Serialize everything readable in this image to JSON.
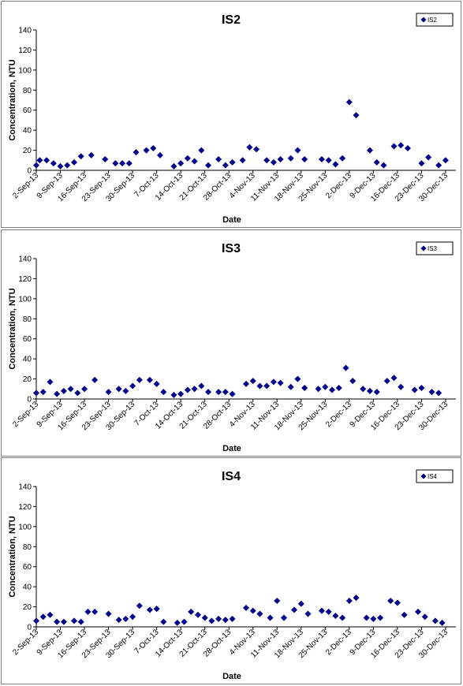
{
  "colors": {
    "marker": "#00008B",
    "axis": "#000000",
    "border": "#7f7f7f"
  },
  "chart_data": [
    {
      "type": "scatter",
      "title": "IS2",
      "xlabel": "Date",
      "ylabel": "Concentration, NTU",
      "ylim": [
        0,
        140
      ],
      "yticks": [
        0,
        20,
        40,
        60,
        80,
        100,
        120,
        140
      ],
      "xlim": [
        "2-Sep-13",
        "2-Jan-14"
      ],
      "xticks": [
        "2-Sep-13",
        "9-Sep-13",
        "16-Sep-13",
        "23-Sep-13",
        "30-Sep-13",
        "7-Oct-13",
        "14-Oct-13",
        "21-Oct-13",
        "28-Oct-13",
        "4-Nov-13",
        "11-Nov-13",
        "18-Nov-13",
        "25-Nov-13",
        "2-Dec-13",
        "9-Dec-13",
        "16-Dec-13",
        "23-Dec-13",
        "30-Dec-13"
      ],
      "legend": "top-right",
      "grid": false,
      "series": [
        {
          "name": "IS2",
          "points": [
            [
              "2-Sep-13",
              5
            ],
            [
              "3-Sep-13",
              10
            ],
            [
              "5-Sep-13",
              10
            ],
            [
              "7-Sep-13",
              7
            ],
            [
              "9-Sep-13",
              4
            ],
            [
              "11-Sep-13",
              5
            ],
            [
              "13-Sep-13",
              8
            ],
            [
              "15-Sep-13",
              14
            ],
            [
              "18-Sep-13",
              15
            ],
            [
              "22-Sep-13",
              11
            ],
            [
              "25-Sep-13",
              7
            ],
            [
              "27-Sep-13",
              7
            ],
            [
              "29-Sep-13",
              7
            ],
            [
              "1-Oct-13",
              18
            ],
            [
              "4-Oct-13",
              20
            ],
            [
              "6-Oct-13",
              22
            ],
            [
              "8-Oct-13",
              15
            ],
            [
              "12-Oct-13",
              4
            ],
            [
              "14-Oct-13",
              7
            ],
            [
              "16-Oct-13",
              12
            ],
            [
              "18-Oct-13",
              9
            ],
            [
              "20-Oct-13",
              20
            ],
            [
              "22-Oct-13",
              5
            ],
            [
              "25-Oct-13",
              11
            ],
            [
              "27-Oct-13",
              5
            ],
            [
              "29-Oct-13",
              8
            ],
            [
              "1-Nov-13",
              10
            ],
            [
              "3-Nov-13",
              23
            ],
            [
              "5-Nov-13",
              21
            ],
            [
              "8-Nov-13",
              10
            ],
            [
              "10-Nov-13",
              8
            ],
            [
              "12-Nov-13",
              11
            ],
            [
              "15-Nov-13",
              12
            ],
            [
              "17-Nov-13",
              20
            ],
            [
              "19-Nov-13",
              11
            ],
            [
              "24-Nov-13",
              11
            ],
            [
              "26-Nov-13",
              10
            ],
            [
              "28-Nov-13",
              6
            ],
            [
              "30-Nov-13",
              12
            ],
            [
              "2-Dec-13",
              68
            ],
            [
              "4-Dec-13",
              55
            ],
            [
              "8-Dec-13",
              20
            ],
            [
              "10-Dec-13",
              8
            ],
            [
              "12-Dec-13",
              5
            ],
            [
              "15-Dec-13",
              24
            ],
            [
              "17-Dec-13",
              25
            ],
            [
              "19-Dec-13",
              22
            ],
            [
              "23-Dec-13",
              7
            ],
            [
              "25-Dec-13",
              13
            ],
            [
              "28-Dec-13",
              5
            ],
            [
              "30-Dec-13",
              10
            ]
          ]
        }
      ]
    },
    {
      "type": "scatter",
      "title": "IS3",
      "xlabel": "Date",
      "ylabel": "Concentration, NTU",
      "ylim": [
        0,
        140
      ],
      "yticks": [
        0,
        20,
        40,
        60,
        80,
        100,
        120,
        140
      ],
      "xlim": [
        "2-Sep-13",
        "2-Jan-14"
      ],
      "xticks": [
        "2-Sep-13",
        "9-Sep-13",
        "16-Sep-13",
        "23-Sep-13",
        "30-Sep-13",
        "7-Oct-13",
        "14-Oct-13",
        "21-Oct-13",
        "28-Oct-13",
        "4-Nov-13",
        "11-Nov-13",
        "18-Nov-13",
        "25-Nov-13",
        "2-Dec-13",
        "9-Dec-13",
        "16-Dec-13",
        "23-Dec-13",
        "30-Dec-13"
      ],
      "legend": "top-right",
      "grid": false,
      "series": [
        {
          "name": "IS3",
          "points": [
            [
              "2-Sep-13",
              6
            ],
            [
              "4-Sep-13",
              7
            ],
            [
              "6-Sep-13",
              17
            ],
            [
              "8-Sep-13",
              5
            ],
            [
              "10-Sep-13",
              8
            ],
            [
              "12-Sep-13",
              10
            ],
            [
              "14-Sep-13",
              6
            ],
            [
              "16-Sep-13",
              10
            ],
            [
              "19-Sep-13",
              19
            ],
            [
              "23-Sep-13",
              7
            ],
            [
              "26-Sep-13",
              10
            ],
            [
              "28-Sep-13",
              8
            ],
            [
              "30-Sep-13",
              13
            ],
            [
              "2-Oct-13",
              19
            ],
            [
              "5-Oct-13",
              19
            ],
            [
              "7-Oct-13",
              15
            ],
            [
              "9-Oct-13",
              7
            ],
            [
              "12-Oct-13",
              4
            ],
            [
              "14-Oct-13",
              5
            ],
            [
              "16-Oct-13",
              9
            ],
            [
              "18-Oct-13",
              10
            ],
            [
              "20-Oct-13",
              13
            ],
            [
              "22-Oct-13",
              7
            ],
            [
              "25-Oct-13",
              7
            ],
            [
              "27-Oct-13",
              7
            ],
            [
              "29-Oct-13",
              5
            ],
            [
              "2-Nov-13",
              15
            ],
            [
              "4-Nov-13",
              18
            ],
            [
              "6-Nov-13",
              13
            ],
            [
              "8-Nov-13",
              13
            ],
            [
              "10-Nov-13",
              17
            ],
            [
              "12-Nov-13",
              16
            ],
            [
              "15-Nov-13",
              12
            ],
            [
              "17-Nov-13",
              20
            ],
            [
              "19-Nov-13",
              11
            ],
            [
              "23-Nov-13",
              10
            ],
            [
              "25-Nov-13",
              12
            ],
            [
              "27-Nov-13",
              9
            ],
            [
              "29-Nov-13",
              11
            ],
            [
              "1-Dec-13",
              31
            ],
            [
              "3-Dec-13",
              18
            ],
            [
              "6-Dec-13",
              10
            ],
            [
              "8-Dec-13",
              8
            ],
            [
              "10-Dec-13",
              7
            ],
            [
              "13-Dec-13",
              18
            ],
            [
              "15-Dec-13",
              21
            ],
            [
              "17-Dec-13",
              12
            ],
            [
              "21-Dec-13",
              9
            ],
            [
              "23-Dec-13",
              11
            ],
            [
              "26-Dec-13",
              7
            ],
            [
              "28-Dec-13",
              6
            ]
          ]
        }
      ]
    },
    {
      "type": "scatter",
      "title": "IS4",
      "xlabel": "Date",
      "ylabel": "Concentration, NTU",
      "ylim": [
        0,
        140
      ],
      "yticks": [
        0,
        20,
        40,
        60,
        80,
        100,
        120,
        140
      ],
      "xlim": [
        "2-Sep-13",
        "2-Jan-14"
      ],
      "xticks": [
        "2-Sep-13",
        "9-Sep-13",
        "16-Sep-13",
        "23-Sep-13",
        "30-Sep-13",
        "7-Oct-13",
        "14-Oct-13",
        "21-Oct-13",
        "28-Oct-13",
        "4-Nov-13",
        "11-Nov-13",
        "18-Nov-13",
        "25-Nov-13",
        "2-Dec-13",
        "9-Dec-13",
        "16-Dec-13",
        "23-Dec-13",
        "30-Dec-13"
      ],
      "legend": "top-right",
      "grid": false,
      "series": [
        {
          "name": "IS4",
          "points": [
            [
              "2-Sep-13",
              6
            ],
            [
              "4-Sep-13",
              10
            ],
            [
              "6-Sep-13",
              12
            ],
            [
              "8-Sep-13",
              5
            ],
            [
              "10-Sep-13",
              5
            ],
            [
              "13-Sep-13",
              6
            ],
            [
              "15-Sep-13",
              5
            ],
            [
              "17-Sep-13",
              15
            ],
            [
              "19-Sep-13",
              15
            ],
            [
              "23-Sep-13",
              13
            ],
            [
              "26-Sep-13",
              7
            ],
            [
              "28-Sep-13",
              8
            ],
            [
              "30-Sep-13",
              10
            ],
            [
              "2-Oct-13",
              21
            ],
            [
              "5-Oct-13",
              17
            ],
            [
              "7-Oct-13",
              18
            ],
            [
              "9-Oct-13",
              5
            ],
            [
              "13-Oct-13",
              4
            ],
            [
              "15-Oct-13",
              5
            ],
            [
              "17-Oct-13",
              15
            ],
            [
              "19-Oct-13",
              12
            ],
            [
              "21-Oct-13",
              9
            ],
            [
              "23-Oct-13",
              6
            ],
            [
              "25-Oct-13",
              8
            ],
            [
              "27-Oct-13",
              7
            ],
            [
              "29-Oct-13",
              8
            ],
            [
              "2-Nov-13",
              19
            ],
            [
              "4-Nov-13",
              16
            ],
            [
              "6-Nov-13",
              13
            ],
            [
              "9-Nov-13",
              9
            ],
            [
              "11-Nov-13",
              26
            ],
            [
              "13-Nov-13",
              9
            ],
            [
              "16-Nov-13",
              17
            ],
            [
              "18-Nov-13",
              23
            ],
            [
              "20-Nov-13",
              13
            ],
            [
              "24-Nov-13",
              16
            ],
            [
              "26-Nov-13",
              15
            ],
            [
              "28-Nov-13",
              11
            ],
            [
              "30-Nov-13",
              9
            ],
            [
              "2-Dec-13",
              26
            ],
            [
              "4-Dec-13",
              29
            ],
            [
              "7-Dec-13",
              9
            ],
            [
              "9-Dec-13",
              8
            ],
            [
              "11-Dec-13",
              9
            ],
            [
              "14-Dec-13",
              26
            ],
            [
              "16-Dec-13",
              24
            ],
            [
              "18-Dec-13",
              12
            ],
            [
              "22-Dec-13",
              15
            ],
            [
              "24-Dec-13",
              10
            ],
            [
              "27-Dec-13",
              6
            ],
            [
              "29-Dec-13",
              4
            ]
          ]
        }
      ]
    }
  ]
}
